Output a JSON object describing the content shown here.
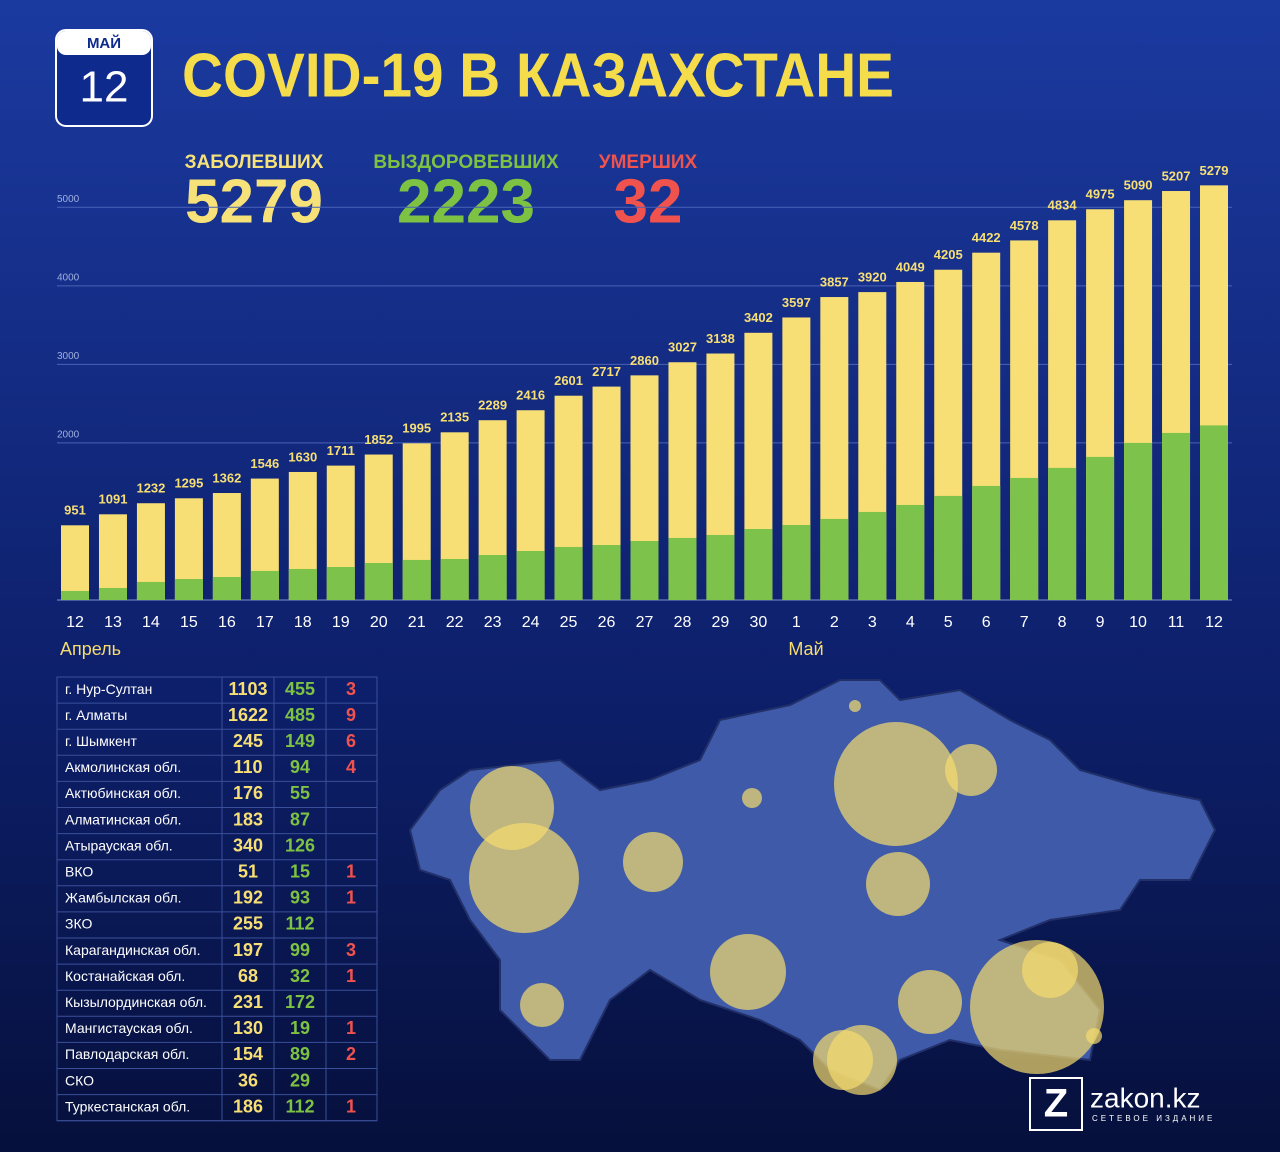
{
  "header": {
    "month": "МАЙ",
    "day": "12",
    "title": "COVID-19 В КАЗАХСТАНЕ"
  },
  "summary": [
    {
      "label": "ЗАБОЛЕВШИХ",
      "value": 5279,
      "color": "#f7e27a"
    },
    {
      "label": "ВЫЗДОРОВЕВШИХ",
      "value": 2223,
      "color": "#7dc242"
    },
    {
      "label": "УМЕРШИХ",
      "value": 32,
      "color": "#f0524d"
    }
  ],
  "chart_data": {
    "type": "bar",
    "grid": true,
    "categories": [
      "12",
      "13",
      "14",
      "15",
      "16",
      "17",
      "18",
      "19",
      "20",
      "21",
      "22",
      "23",
      "24",
      "25",
      "26",
      "27",
      "28",
      "29",
      "30",
      "1",
      "2",
      "3",
      "4",
      "5",
      "6",
      "7",
      "8",
      "9",
      "10",
      "11",
      "12"
    ],
    "months": [
      "Апрель",
      "Май"
    ],
    "series": [
      {
        "color": "#f7df75",
        "values": [
          951,
          1091,
          1232,
          1295,
          1362,
          1546,
          1630,
          1711,
          1852,
          1995,
          2135,
          2289,
          2416,
          2601,
          2717,
          2860,
          3027,
          3138,
          3402,
          3597,
          3857,
          3920,
          4049,
          4205,
          4422,
          4578,
          4834,
          4975,
          5090,
          5207,
          5279
        ]
      },
      {
        "color": "#7cc24b",
        "values": [
          115,
          153,
          230,
          267,
          293,
          370,
          395,
          420,
          471,
          510,
          522,
          573,
          624,
          675,
          700,
          751,
          790,
          828,
          904,
          955,
          1032,
          1121,
          1210,
          1325,
          1452,
          1554,
          1682,
          1822,
          2000,
          2127,
          2223
        ]
      }
    ],
    "ylim": [
      0,
      5500
    ],
    "yticks": [
      2000,
      3000,
      4000,
      5000
    ]
  },
  "table": {
    "rows": [
      [
        "г. Нур-Султан",
        1103,
        455,
        3
      ],
      [
        "г. Алматы",
        1622,
        485,
        9
      ],
      [
        "г. Шымкент",
        245,
        149,
        6
      ],
      [
        "Акмолинская обл.",
        110,
        94,
        4
      ],
      [
        "Актюбинская обл.",
        176,
        55,
        null
      ],
      [
        "Алматинская обл.",
        183,
        87,
        null
      ],
      [
        "Атырауская обл.",
        340,
        126,
        null
      ],
      [
        "ВКО",
        51,
        15,
        1
      ],
      [
        "Жамбылская обл.",
        192,
        93,
        1
      ],
      [
        "ЗКО",
        255,
        112,
        null
      ],
      [
        "Карагандинская обл.",
        197,
        99,
        3
      ],
      [
        "Костанайская обл.",
        68,
        32,
        1
      ],
      [
        "Кызылординская обл.",
        231,
        172,
        null
      ],
      [
        "Мангистауская обл.",
        130,
        19,
        1
      ],
      [
        "Павлодарская обл.",
        154,
        89,
        2
      ],
      [
        "СКО",
        36,
        29,
        null
      ],
      [
        "Туркестанская обл.",
        186,
        112,
        1
      ]
    ]
  },
  "brand": {
    "name": "zakon.kz",
    "tagline": "СЕТЕВОЕ ИЗДАНИЕ"
  }
}
